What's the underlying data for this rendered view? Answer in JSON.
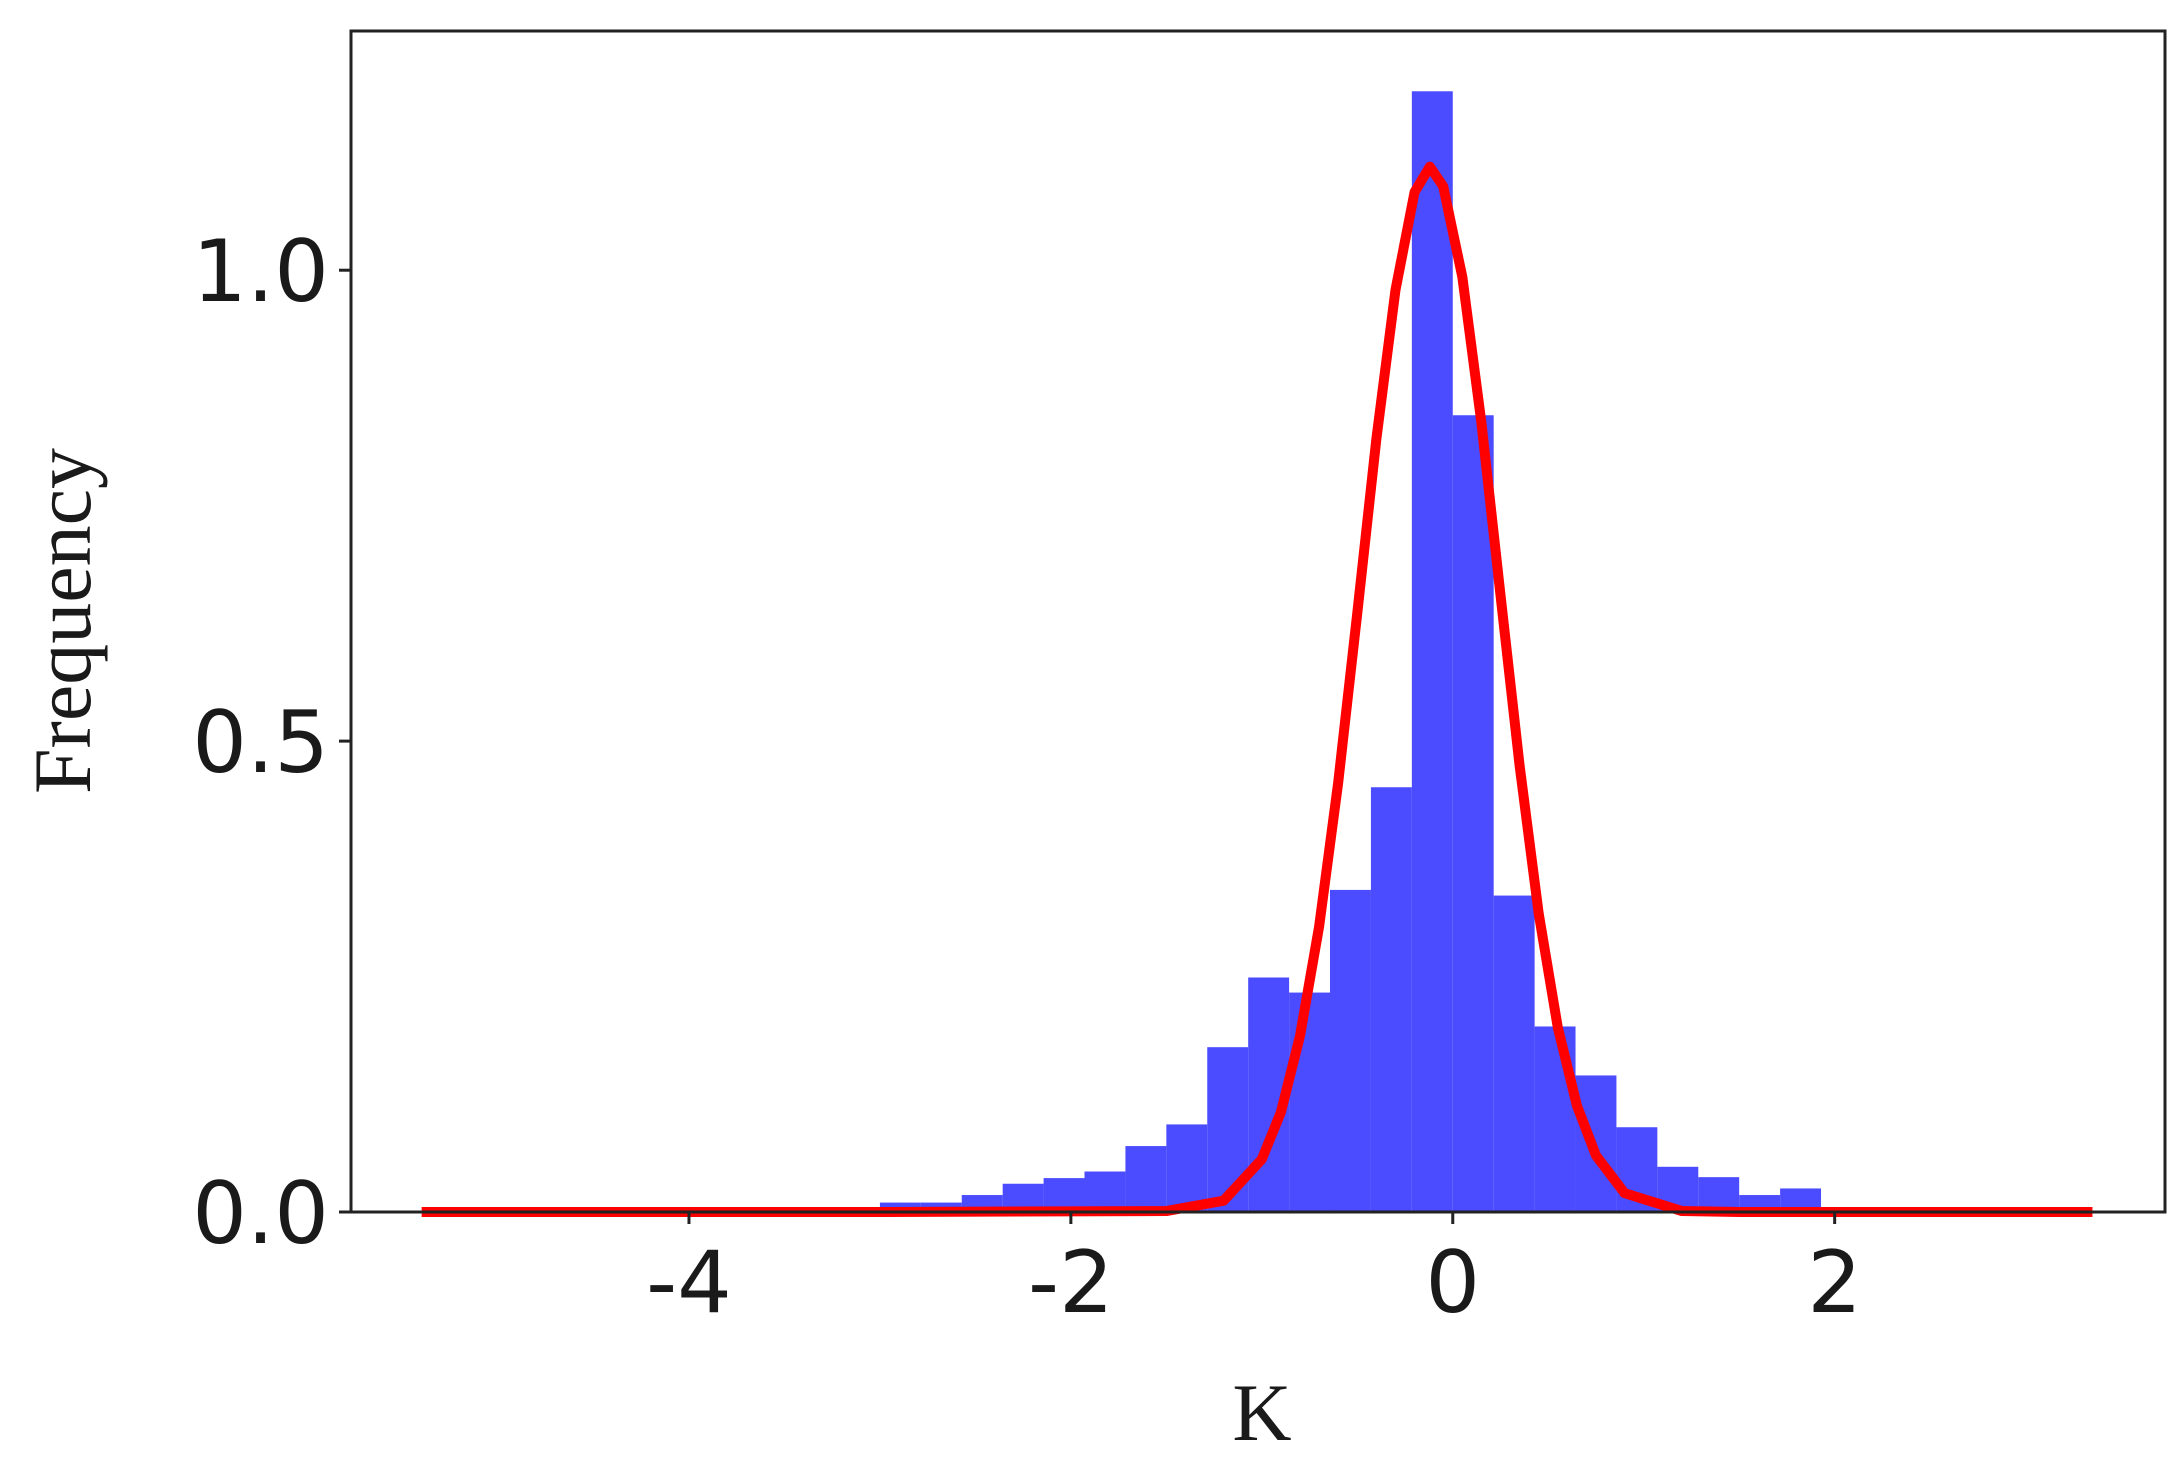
{
  "chart_data": {
    "type": "histogram",
    "x_label": "K",
    "y_label": "Frequency",
    "bins": [
      -3.0,
      -2.7857,
      -2.5714,
      -2.3571,
      -2.1429,
      -1.9286,
      -1.7143,
      -1.5,
      -1.2857,
      -1.0714,
      -0.8571,
      -0.6429,
      -0.4286,
      -0.2143,
      0.0,
      0.2143,
      0.4286,
      0.6429,
      0.8571,
      1.0714,
      1.2857,
      1.5,
      1.7143,
      1.9286
    ],
    "values": [
      0.01,
      0.01,
      0.018,
      0.03,
      0.036,
      0.043,
      0.07,
      0.093,
      0.175,
      0.249,
      0.233,
      0.342,
      0.451,
      1.19,
      0.846,
      0.336,
      0.197,
      0.145,
      0.09,
      0.048,
      0.037,
      0.018,
      0.025
    ],
    "color": "#4b4bff",
    "fit": {
      "color": "#ff0000",
      "x": [
        -5.4,
        -3.0,
        -1.5,
        -1.2,
        -1.0,
        -0.9,
        -0.8,
        -0.7,
        -0.6,
        -0.5,
        -0.4,
        -0.3,
        -0.2,
        -0.12,
        -0.05,
        0.05,
        0.15,
        0.25,
        0.35,
        0.45,
        0.55,
        0.65,
        0.75,
        0.9,
        1.2,
        1.5,
        3.35
      ],
      "values": [
        0,
        0,
        0.001,
        0.012,
        0.056,
        0.106,
        0.187,
        0.303,
        0.456,
        0.636,
        0.821,
        0.979,
        1.083,
        1.11,
        1.089,
        0.993,
        0.838,
        0.655,
        0.474,
        0.317,
        0.196,
        0.113,
        0.06,
        0.02,
        0.001,
        0,
        0
      ]
    },
    "xlim": [
      -5.77,
      3.73
    ],
    "ylim": [
      0,
      1.254
    ],
    "xticks": [
      -4,
      -2,
      0,
      2
    ],
    "yticks": [
      {
        "value": 0,
        "label": "0.0"
      },
      {
        "value": 0.5,
        "label": "0.5"
      },
      {
        "value": 1,
        "label": "1.0"
      }
    ]
  }
}
